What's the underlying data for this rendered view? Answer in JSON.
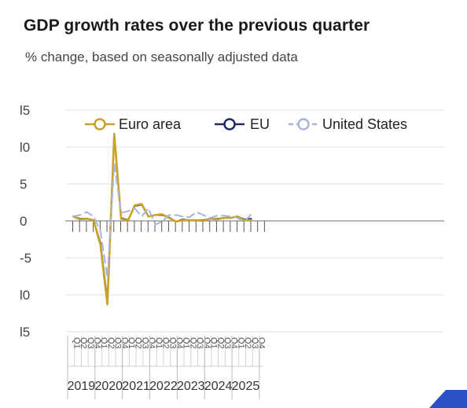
{
  "header": {
    "title": "GDP growth rates over the previous quarter",
    "subtitle": "% change, based on seasonally adjusted data"
  },
  "colors": {
    "euro_area": "#c9a227",
    "eu": "#1f2a6b",
    "us": "#a8b4dc",
    "grid": "#dde1ef",
    "corner": "#2b4fc4"
  },
  "chart_data": {
    "type": "line",
    "title": "GDP growth rates over the previous quarter",
    "subtitle": "% change, based on seasonally adjusted data",
    "xlabel": "",
    "ylabel": "",
    "ylim": [
      -15,
      15
    ],
    "yticks": [
      "15",
      "10",
      "5",
      "0",
      "-5",
      "-10",
      "-15"
    ],
    "yticks_shown": [
      "l5",
      "l0",
      "5",
      "0",
      "-5",
      "l0",
      "l5"
    ],
    "years": [
      "2019",
      "2020",
      "2021",
      "2022",
      "2023",
      "2024",
      "2025"
    ],
    "quarters": [
      "Q1",
      "Q2",
      "Q3",
      "Q4"
    ],
    "grid": true,
    "legend_position": "top",
    "series": [
      {
        "name": "Euro area",
        "style": "solid",
        "values": [
          0.6,
          0.2,
          0.3,
          0.1,
          -3.3,
          -11.3,
          11.8,
          0.3,
          0.0,
          2.1,
          2.3,
          0.6,
          0.8,
          0.9,
          0.4,
          -0.1,
          0.1,
          0.1,
          0.1,
          0.0,
          0.3,
          0.2,
          0.4,
          0.4,
          0.6,
          0.1,
          0.1
        ]
      },
      {
        "name": "EU",
        "style": "solid",
        "values": [
          0.6,
          0.3,
          0.3,
          0.1,
          -3.0,
          -10.8,
          11.5,
          0.4,
          0.1,
          2.0,
          2.2,
          0.6,
          0.8,
          0.8,
          0.5,
          -0.1,
          0.2,
          0.1,
          0.1,
          0.1,
          0.3,
          0.3,
          0.4,
          0.4,
          0.6,
          0.2,
          0.3
        ]
      },
      {
        "name": "United States",
        "style": "dashed",
        "values": [
          0.6,
          0.8,
          1.2,
          0.6,
          -1.4,
          -7.7,
          7.8,
          1.1,
          1.3,
          1.7,
          0.6,
          1.7,
          -0.5,
          -0.1,
          0.8,
          0.8,
          0.6,
          0.5,
          1.2,
          0.8,
          0.4,
          0.7,
          0.7,
          0.6,
          0.4,
          -0.1,
          0.9
        ]
      }
    ]
  }
}
